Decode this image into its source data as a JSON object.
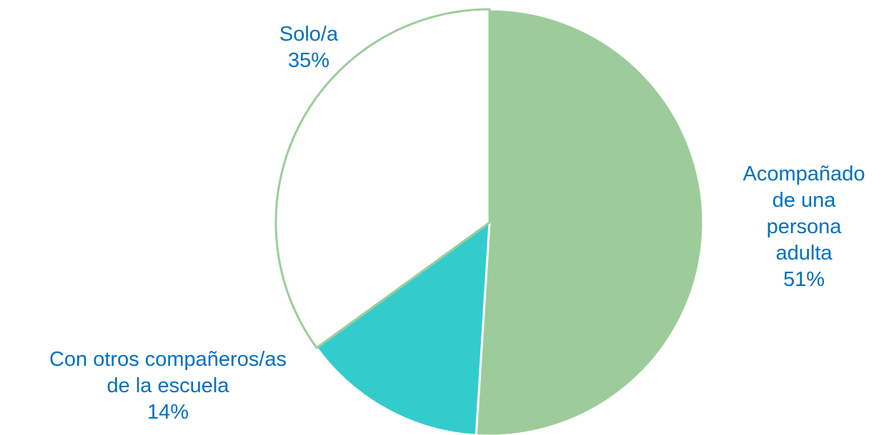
{
  "chart_data": {
    "type": "pie",
    "categories": [
      "Acompañado\nde una\npersona\nadulta",
      "Con otros compañeros/as\nde la escuela",
      "Solo/a"
    ],
    "values": [
      51,
      14,
      35
    ],
    "value_labels": [
      "51%",
      "14%",
      "35%"
    ],
    "colors": [
      "#9dcc9a",
      "#33cccc",
      "#ffffff"
    ]
  }
}
